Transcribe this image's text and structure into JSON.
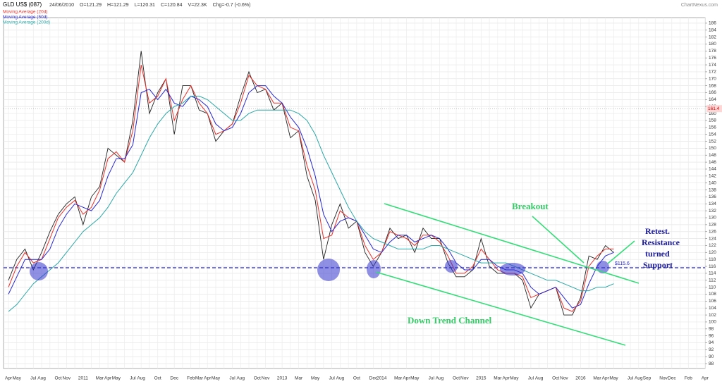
{
  "chart_data": {
    "type": "line",
    "title": "GLD US$ (087)",
    "header": [
      "24/06/2010",
      "O=121.29",
      "H=121.29",
      "L=120.31",
      "C=120.84",
      "V=22.3K",
      "Chg=-0.7 (-0.6%)"
    ],
    "source": "ChartNexus.com",
    "annotations": [
      "Breakout",
      "Retest.",
      "Resistance",
      "turned",
      "Support",
      "Down Trend Channel"
    ],
    "support_level": {
      "value": 115.6,
      "label": "$115.6"
    },
    "last_marker": {
      "value": 161.4,
      "label": "161.4"
    },
    "categories": [
      "Apr",
      "May",
      null,
      "Jul",
      "Aug",
      null,
      "Oct",
      "Nov",
      null,
      "2011",
      null,
      "Mar",
      "Apr",
      "May",
      null,
      "Jul",
      "Aug",
      null,
      "Oct",
      null,
      "Dec",
      null,
      "Feb",
      "Mar",
      "Apr",
      "May",
      null,
      "Jul",
      "Aug",
      null,
      "Oct",
      "Nov",
      null,
      "2013",
      null,
      "Mar",
      null,
      "May",
      null,
      "Jul",
      "Aug",
      null,
      "Oct",
      null,
      "Dec",
      "2014",
      null,
      "Mar",
      "Apr",
      "May",
      null,
      "Jul",
      "Aug",
      null,
      "Oct",
      "Nov",
      null,
      "2015",
      null,
      "Mar",
      "Apr",
      "May",
      null,
      "Jul",
      "Aug",
      null,
      "Oct",
      "Nov",
      null,
      "2016",
      null,
      "Mar",
      "Apr",
      "May",
      null,
      "Jul",
      "Aug",
      "Sep",
      null,
      "Nov",
      "Dec",
      null,
      "Feb",
      null,
      "Apr"
    ],
    "values": [
      112,
      118,
      121,
      115,
      120,
      126,
      131,
      134,
      136,
      128,
      136,
      139,
      150,
      148,
      146,
      158,
      178,
      160,
      166,
      170,
      154,
      168,
      168,
      161,
      160,
      152,
      155,
      157,
      165,
      172,
      166,
      167,
      161,
      163,
      153,
      155,
      142,
      135,
      118,
      128,
      134,
      127,
      129,
      120,
      116,
      120,
      127,
      124,
      125,
      120,
      127,
      124,
      124,
      117,
      113,
      113,
      115,
      124,
      116,
      114,
      114,
      114,
      112,
      104,
      108,
      109,
      110,
      102,
      102,
      107,
      119,
      118,
      122,
      120,
      null,
      null,
      null,
      null,
      null,
      null,
      null,
      null,
      null,
      null,
      null
    ],
    "color": "#222222",
    "series": [
      {
        "name": "Moving Average (20d)",
        "color": "#e8302a",
        "values": [
          110,
          116,
          120,
          117,
          118,
          124,
          130,
          133,
          135,
          131,
          133,
          138,
          147,
          149,
          146,
          155,
          174,
          163,
          165,
          170,
          158,
          164,
          168,
          163,
          160,
          154,
          155,
          157,
          163,
          171,
          168,
          167,
          163,
          163,
          156,
          155,
          145,
          138,
          124,
          125,
          132,
          130,
          129,
          122,
          118,
          120,
          126,
          125,
          124,
          122,
          125,
          125,
          123,
          119,
          114,
          114,
          116,
          121,
          118,
          115,
          114,
          114,
          113,
          107,
          108,
          109,
          110,
          104,
          103,
          106,
          116,
          119,
          121,
          121,
          null,
          null,
          null,
          null,
          null,
          null,
          null,
          null,
          null,
          null,
          null
        ]
      },
      {
        "name": "Moving Average (50d)",
        "color": "#2727d0",
        "values": [
          108,
          113,
          118,
          118,
          118,
          121,
          127,
          131,
          134,
          133,
          132,
          135,
          142,
          147,
          147,
          151,
          166,
          167,
          164,
          167,
          163,
          162,
          165,
          164,
          162,
          157,
          155,
          156,
          160,
          166,
          168,
          168,
          165,
          163,
          159,
          156,
          150,
          142,
          131,
          126,
          129,
          130,
          129,
          125,
          121,
          120,
          123,
          125,
          125,
          123,
          124,
          125,
          124,
          121,
          117,
          115,
          115,
          118,
          118,
          116,
          115,
          115,
          114,
          110,
          108,
          109,
          110,
          107,
          104,
          105,
          111,
          116,
          119,
          120,
          null,
          null,
          null,
          null,
          null,
          null,
          null,
          null,
          null,
          null,
          null
        ]
      },
      {
        "name": "Moving Average (200d)",
        "color": "#2aa6a6",
        "values": [
          103,
          105,
          108,
          111,
          113,
          115,
          117,
          120,
          123,
          126,
          128,
          130,
          133,
          137,
          140,
          143,
          148,
          153,
          157,
          160,
          162,
          163,
          165,
          165,
          164,
          162,
          160,
          158,
          158,
          160,
          161,
          161,
          161,
          161,
          161,
          160,
          158,
          154,
          148,
          143,
          138,
          133,
          129,
          126,
          124,
          123,
          122,
          121,
          121,
          121,
          121,
          122,
          122,
          121,
          120,
          119,
          118,
          117,
          117,
          117,
          117,
          116,
          115,
          114,
          113,
          112,
          112,
          111,
          110,
          109,
          109,
          110,
          110,
          111,
          null,
          null,
          null,
          null,
          null,
          null,
          null,
          null,
          null,
          null,
          null
        ]
      }
    ],
    "ylim": [
      86.6,
      187.6
    ],
    "yticks": [
      88,
      90,
      92,
      94,
      96,
      98,
      100,
      102,
      104,
      106,
      108,
      110,
      112,
      114,
      116,
      118,
      120,
      122,
      124,
      126,
      128,
      130,
      132,
      134,
      136,
      138,
      140,
      142,
      144,
      146,
      148,
      150,
      152,
      154,
      156,
      158,
      160,
      162,
      164,
      166,
      168,
      170,
      172,
      174,
      176,
      178,
      180,
      182,
      184,
      186
    ],
    "grid": true
  }
}
